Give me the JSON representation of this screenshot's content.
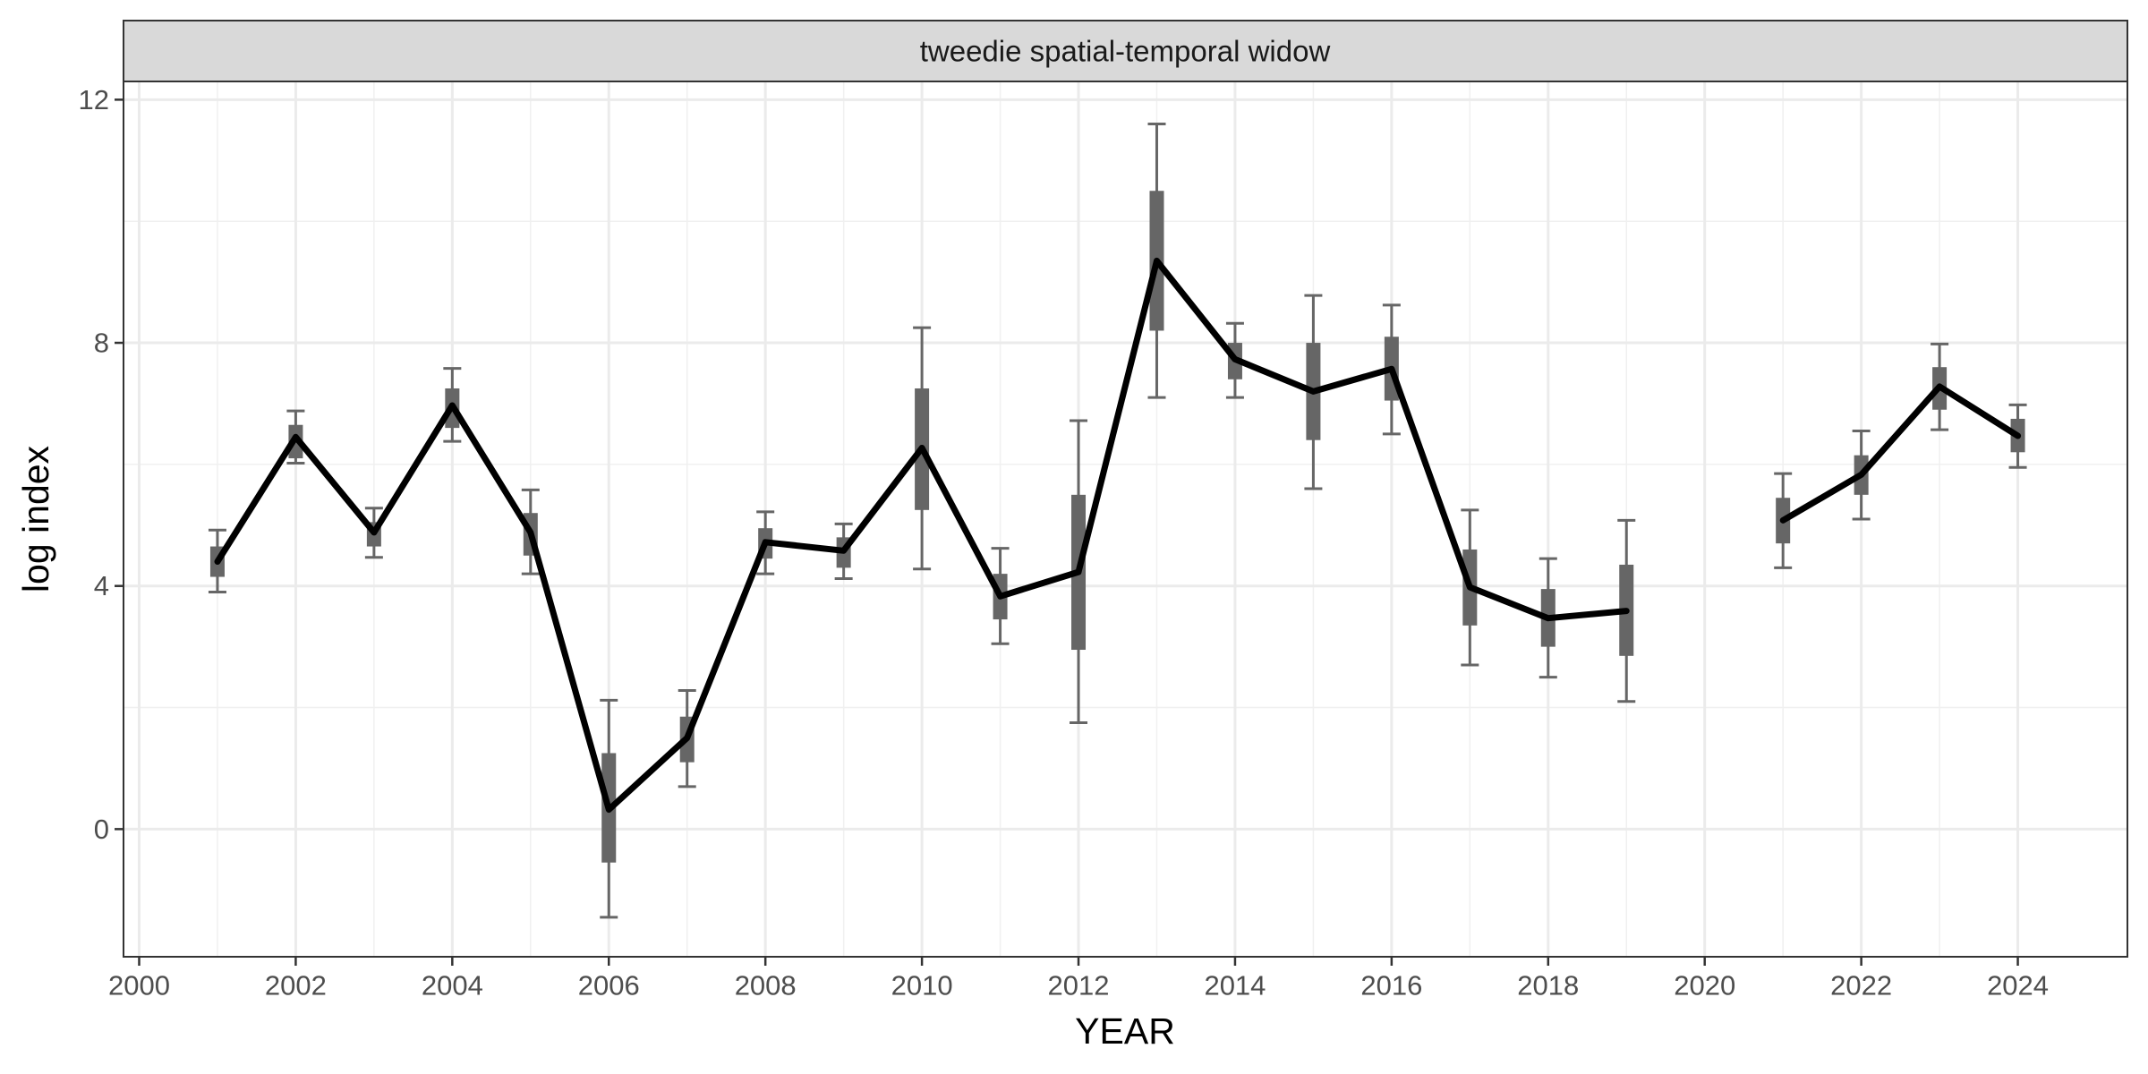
{
  "chart_data": {
    "type": "line",
    "facet_label": "tweedie spatial-temporal widow",
    "xlabel": "YEAR",
    "ylabel": "log index",
    "xlim": [
      1999.8,
      2025.4
    ],
    "ylim": [
      -2.1,
      12.3
    ],
    "x_ticks": [
      2000,
      2002,
      2004,
      2006,
      2008,
      2010,
      2012,
      2014,
      2016,
      2018,
      2020,
      2022,
      2024
    ],
    "y_ticks": [
      0,
      4,
      8,
      12
    ],
    "grid": true,
    "line_color": "#000000",
    "interval_color": "#666666",
    "segments": [
      {
        "x": [
          2001,
          2002,
          2003,
          2004,
          2005,
          2006,
          2007,
          2008,
          2009,
          2010,
          2011,
          2012,
          2013,
          2014,
          2015,
          2016,
          2017,
          2018,
          2019
        ],
        "y": [
          4.4,
          6.45,
          4.88,
          6.97,
          4.88,
          0.32,
          1.5,
          4.72,
          4.58,
          6.27,
          3.83,
          4.23,
          9.35,
          7.73,
          7.2,
          7.57,
          3.98,
          3.47,
          3.59
        ],
        "se_lower": [
          4.15,
          6.1,
          4.65,
          6.6,
          4.5,
          -0.55,
          1.1,
          4.45,
          4.3,
          5.25,
          3.45,
          2.95,
          8.2,
          7.4,
          6.4,
          7.05,
          3.35,
          3.0,
          2.85
        ],
        "se_upper": [
          4.65,
          6.65,
          5.05,
          7.25,
          5.2,
          1.25,
          1.85,
          4.95,
          4.8,
          7.25,
          4.2,
          5.5,
          10.5,
          8.0,
          8.0,
          8.1,
          4.6,
          3.95,
          4.35
        ],
        "ci_lower": [
          3.9,
          6.02,
          4.47,
          6.38,
          4.2,
          -1.45,
          0.7,
          4.2,
          4.12,
          4.28,
          3.05,
          1.75,
          7.1,
          7.1,
          5.6,
          6.5,
          2.7,
          2.5,
          2.1
        ],
        "ci_upper": [
          4.92,
          6.88,
          5.28,
          7.58,
          5.58,
          2.12,
          2.28,
          5.22,
          5.02,
          8.25,
          4.62,
          6.72,
          11.6,
          8.32,
          8.78,
          8.62,
          5.25,
          4.45,
          5.08
        ]
      },
      {
        "x": [
          2021,
          2022,
          2023,
          2024
        ],
        "y": [
          5.08,
          5.83,
          7.28,
          6.47
        ],
        "se_lower": [
          4.7,
          5.5,
          6.9,
          6.2
        ],
        "se_upper": [
          5.45,
          6.15,
          7.6,
          6.75
        ],
        "ci_lower": [
          4.3,
          5.1,
          6.57,
          5.95
        ],
        "ci_upper": [
          5.85,
          6.55,
          7.98,
          6.98
        ]
      }
    ]
  }
}
